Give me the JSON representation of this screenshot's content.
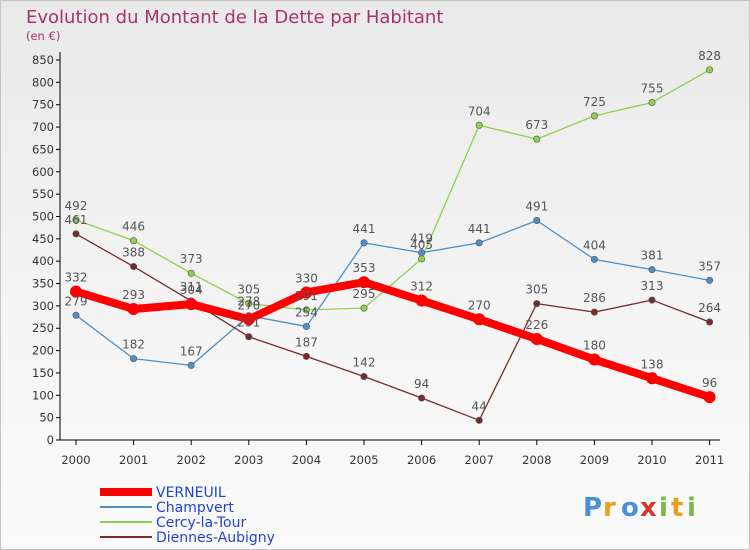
{
  "chart_data": {
    "type": "line",
    "title": "Evolution du Montant de la Dette par Habitant",
    "unit_label": "(en €)",
    "xlabel": "",
    "ylabel": "",
    "x": [
      "2000",
      "2001",
      "2002",
      "2003",
      "2004",
      "2005",
      "2006",
      "2007",
      "2008",
      "2009",
      "2010",
      "2011"
    ],
    "ylim": [
      0,
      850
    ],
    "yticks": [
      0,
      50,
      100,
      150,
      200,
      250,
      300,
      350,
      400,
      450,
      500,
      550,
      600,
      650,
      700,
      750,
      800,
      850
    ],
    "grid": false,
    "legend_placement": "bottom-left",
    "series": [
      {
        "name": "VERNEUIL",
        "color": "#ff0000",
        "values": [
          332,
          293,
          304,
          270,
          330,
          353,
          312,
          270,
          226,
          180,
          138,
          96
        ]
      },
      {
        "name": "Champvert",
        "color": "#4f8fc9",
        "values": [
          279,
          182,
          167,
          278,
          254,
          441,
          419,
          441,
          491,
          404,
          381,
          357
        ]
      },
      {
        "name": "Cercy-la-Tour",
        "color": "#8fd14f",
        "values": [
          492,
          446,
          373,
          305,
          291,
          295,
          405,
          704,
          673,
          725,
          755,
          828
        ]
      },
      {
        "name": "Diennes-Aubigny",
        "color": "#7a2a2a",
        "values": [
          461,
          388,
          311,
          231,
          187,
          142,
          94,
          44,
          305,
          286,
          313,
          264
        ]
      }
    ]
  },
  "logo": {
    "text": "Proxiti"
  }
}
